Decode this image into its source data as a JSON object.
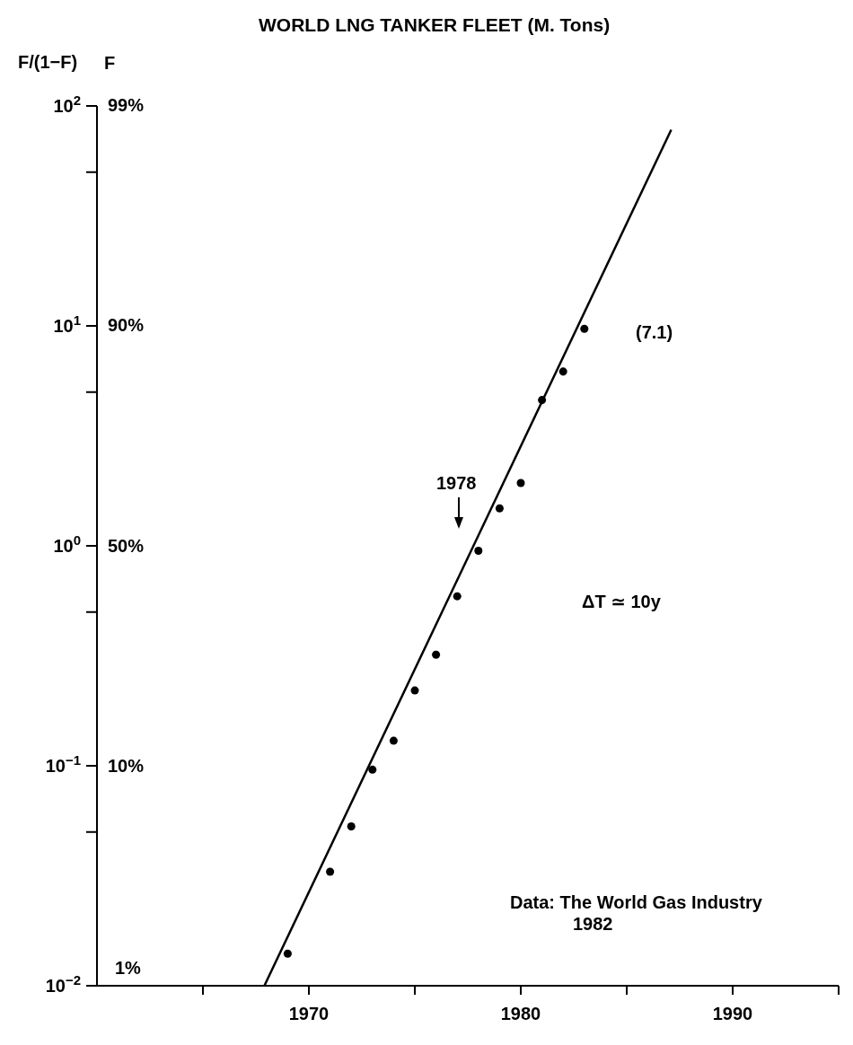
{
  "chart_data": {
    "type": "scatter",
    "title": "WORLD LNG TANKER FLEET (M. Tons)",
    "ylabel": "F/(1−F)",
    "log": "y",
    "xlim": [
      1960,
      1995
    ],
    "xticks": [
      {
        "value": 1965,
        "label": null
      },
      1970,
      {
        "value": 1975,
        "label": null
      },
      1980,
      {
        "value": 1985,
        "label": null
      },
      1990,
      {
        "value": 1995,
        "label": null
      }
    ],
    "ylim": [
      0.01,
      100
    ],
    "yticks": [
      {
        "value": 0.01,
        "label": "10$^{−2}$"
      },
      {
        "value": 0.05,
        "label": null
      },
      {
        "value": 0.1,
        "label": "10$^{−1}$"
      },
      {
        "value": 0.5,
        "label": null
      },
      {
        "value": 1,
        "label": "10$^{0}$"
      },
      {
        "value": 5,
        "label": null
      },
      {
        "value": 10,
        "label": "10$^{1}$"
      },
      {
        "value": 50,
        "label": null
      },
      {
        "value": 100,
        "label": "10$^{2}$"
      }
    ],
    "series": [
      {
        "marker": "circle",
        "color": "#000000",
        "x": [
          1969,
          1971,
          1972,
          1973,
          1974,
          1975,
          1976,
          1977,
          1978,
          1979,
          1980,
          1981,
          1982,
          1983
        ],
        "values": [
          0.014,
          0.033,
          0.053,
          0.096,
          0.13,
          0.22,
          0.32,
          0.59,
          0.95,
          1.48,
          1.93,
          4.6,
          6.2,
          9.7
        ]
      },
      {
        "type": "line",
        "marker": "none",
        "color": "#000000",
        "x": [
          1967.9,
          1987.1
        ],
        "values": [
          0.01,
          78
        ]
      }
    ],
    "annotations": [
      "F",
      "99%",
      "90%",
      "50%",
      "10%",
      "1%",
      "1978",
      "(7.1)",
      "ΔT ≃ 10y",
      "Data: The World Gas Industry\n1982"
    ]
  }
}
